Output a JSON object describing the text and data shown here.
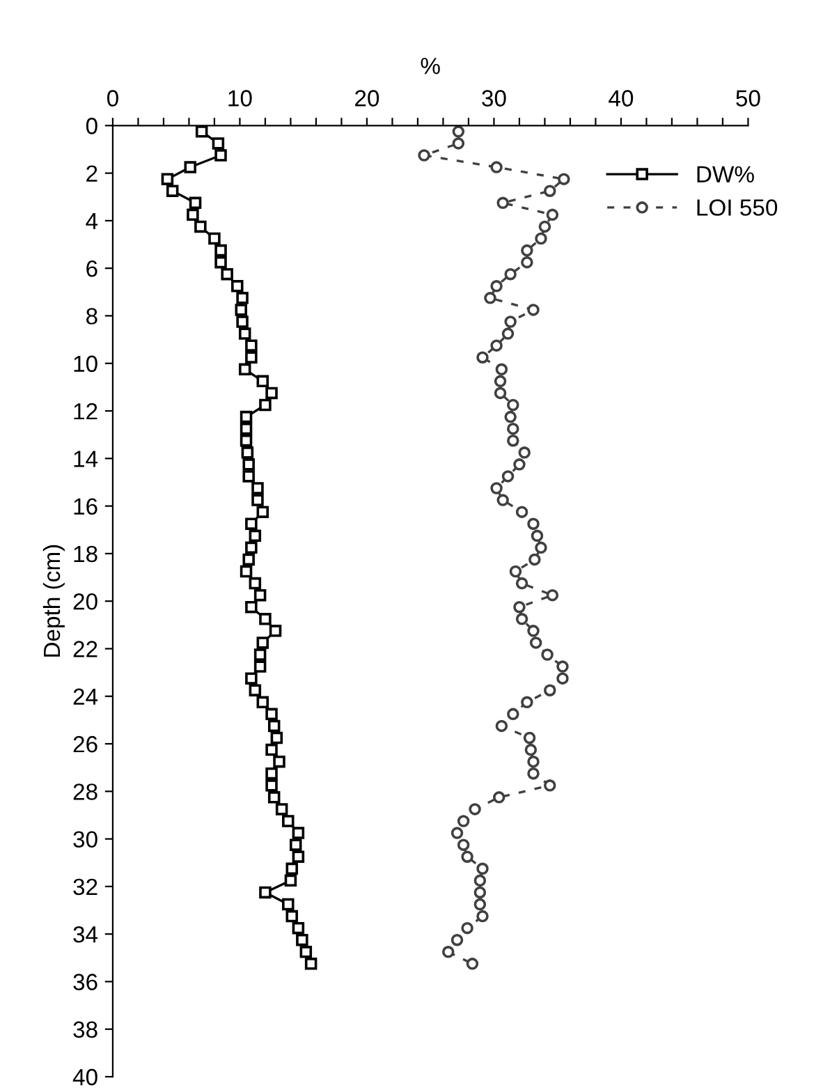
{
  "chart_data": {
    "type": "line",
    "xlabel": "%",
    "ylabel": "Depth (cm)",
    "xlim": [
      0,
      50
    ],
    "ylim": [
      40,
      0
    ],
    "xticks": [
      0,
      {
        "value": 2,
        "label": null
      },
      {
        "value": 4,
        "label": null
      },
      {
        "value": 6,
        "label": null
      },
      {
        "value": 8,
        "label": null
      },
      10,
      {
        "value": 12,
        "label": null
      },
      {
        "value": 14,
        "label": null
      },
      {
        "value": 16,
        "label": null
      },
      {
        "value": 18,
        "label": null
      },
      20,
      {
        "value": 22,
        "label": null
      },
      {
        "value": 24,
        "label": null
      },
      {
        "value": 26,
        "label": null
      },
      {
        "value": 28,
        "label": null
      },
      30,
      {
        "value": 32,
        "label": null
      },
      {
        "value": 34,
        "label": null
      },
      {
        "value": 36,
        "label": null
      },
      {
        "value": 38,
        "label": null
      },
      40,
      {
        "value": 42,
        "label": null
      },
      {
        "value": 44,
        "label": null
      },
      {
        "value": 46,
        "label": null
      },
      {
        "value": 48,
        "label": null
      },
      50
    ],
    "yticks": [
      0,
      2,
      4,
      6,
      8,
      10,
      12,
      14,
      16,
      18,
      20,
      22,
      24,
      26,
      28,
      30,
      32,
      34,
      36,
      38,
      40
    ],
    "grid": false,
    "legend": "top right",
    "series": [
      {
        "name": "DW%",
        "color": "#000000",
        "marker": "square",
        "line_style": "solid",
        "x": [
          7.0,
          8.3,
          8.5,
          6.1,
          4.3,
          4.7,
          6.5,
          6.3,
          6.9,
          8.0,
          8.5,
          8.5,
          9.0,
          9.8,
          10.2,
          10.1,
          10.2,
          10.4,
          10.9,
          10.9,
          10.4,
          11.8,
          12.5,
          12.0,
          10.5,
          10.5,
          10.5,
          10.6,
          10.7,
          10.7,
          11.4,
          11.4,
          11.8,
          10.9,
          11.2,
          10.9,
          10.7,
          10.5,
          11.2,
          11.6,
          10.9,
          12.0,
          12.8,
          11.8,
          11.6,
          11.6,
          10.9,
          11.2,
          11.8,
          12.5,
          12.7,
          12.9,
          12.5,
          13.1,
          12.5,
          12.5,
          12.7,
          13.3,
          13.8,
          14.6,
          14.4,
          14.6,
          14.1,
          14.0,
          12.0,
          13.8,
          14.1,
          14.6,
          14.9,
          15.2,
          15.6
        ],
        "values": [
          0.25,
          0.75,
          1.25,
          1.75,
          2.25,
          2.75,
          3.25,
          3.75,
          4.25,
          4.75,
          5.25,
          5.75,
          6.25,
          6.75,
          7.25,
          7.75,
          8.25,
          8.75,
          9.25,
          9.75,
          10.25,
          10.75,
          11.25,
          11.75,
          12.25,
          12.75,
          13.25,
          13.75,
          14.25,
          14.75,
          15.25,
          15.75,
          16.25,
          16.75,
          17.25,
          17.75,
          18.25,
          18.75,
          19.25,
          19.75,
          20.25,
          20.75,
          21.25,
          21.75,
          22.25,
          22.75,
          23.25,
          23.75,
          24.25,
          24.75,
          25.25,
          25.75,
          26.25,
          26.75,
          27.25,
          27.75,
          28.25,
          28.75,
          29.25,
          29.75,
          30.25,
          30.75,
          31.25,
          31.75,
          32.25,
          32.75,
          33.25,
          33.75,
          34.25,
          34.75,
          35.25
        ]
      },
      {
        "name": "LOI 550",
        "color": "#404040",
        "marker": "circle",
        "line_style": "dashed",
        "x": [
          27.2,
          27.2,
          24.5,
          30.2,
          35.5,
          34.4,
          30.7,
          34.6,
          34.0,
          33.7,
          32.6,
          32.6,
          31.3,
          30.2,
          29.7,
          33.1,
          31.3,
          31.1,
          30.2,
          29.1,
          30.6,
          30.5,
          30.5,
          31.5,
          31.3,
          31.5,
          31.5,
          32.4,
          32.0,
          31.1,
          30.2,
          30.7,
          32.2,
          33.1,
          33.4,
          33.7,
          33.2,
          31.7,
          32.2,
          34.6,
          32.0,
          32.2,
          33.1,
          33.3,
          34.2,
          35.4,
          35.4,
          34.4,
          32.6,
          31.5,
          30.6,
          32.8,
          32.9,
          33.1,
          33.1,
          34.4,
          30.4,
          28.5,
          27.6,
          27.1,
          27.6,
          27.9,
          29.1,
          28.9,
          28.9,
          28.9,
          29.1,
          27.9,
          27.1,
          26.4,
          28.3
        ],
        "values": [
          0.25,
          0.75,
          1.25,
          1.75,
          2.25,
          2.75,
          3.25,
          3.75,
          4.25,
          4.75,
          5.25,
          5.75,
          6.25,
          6.75,
          7.25,
          7.75,
          8.25,
          8.75,
          9.25,
          9.75,
          10.25,
          10.75,
          11.25,
          11.75,
          12.25,
          12.75,
          13.25,
          13.75,
          14.25,
          14.75,
          15.25,
          15.75,
          16.25,
          16.75,
          17.25,
          17.75,
          18.25,
          18.75,
          19.25,
          19.75,
          20.25,
          20.75,
          21.25,
          21.75,
          22.25,
          22.75,
          23.25,
          23.75,
          24.25,
          24.75,
          25.25,
          25.75,
          26.25,
          26.75,
          27.25,
          27.75,
          28.25,
          28.75,
          29.25,
          29.75,
          30.25,
          30.75,
          31.25,
          31.75,
          32.25,
          32.75,
          33.25,
          33.75,
          34.25,
          34.75,
          35.25
        ]
      }
    ]
  }
}
